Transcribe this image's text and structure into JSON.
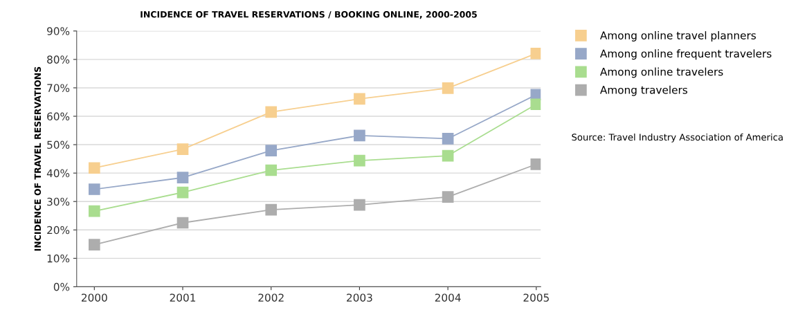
{
  "chart_data": {
    "type": "line",
    "title": "INCIDENCE OF TRAVEL RESERVATIONS / BOOKING ONLINE, 2000-2005",
    "ylabel": "INCIDENCE OF TRAVEL RESERVATIONS",
    "categories": [
      "2000",
      "2001",
      "2002",
      "2003",
      "2004",
      "2005"
    ],
    "series": [
      {
        "name": "Among online travel planners",
        "color": "#f7cf8f",
        "values": [
          41.8,
          48.4,
          61.5,
          66.1,
          69.9,
          82.1
        ]
      },
      {
        "name": "Among online frequent travelers",
        "color": "#97a8c8",
        "values": [
          34.3,
          38.4,
          47.9,
          53.2,
          52.1,
          67.6
        ]
      },
      {
        "name": "Among online travelers",
        "color": "#a9dd8f",
        "values": [
          26.6,
          33.2,
          41.0,
          44.4,
          46.1,
          64.2
        ]
      },
      {
        "name": "Among travelers",
        "color": "#adadad",
        "values": [
          14.8,
          22.5,
          27.1,
          28.8,
          31.6,
          43.1
        ]
      }
    ],
    "ylim": [
      0,
      90
    ],
    "yticks": [
      {
        "value": 0,
        "label": "0%"
      },
      {
        "value": 10,
        "label": "10%"
      },
      {
        "value": 20,
        "label": "20%"
      },
      {
        "value": 30,
        "label": "30%"
      },
      {
        "value": 40,
        "label": "40%"
      },
      {
        "value": 50,
        "label": "50%"
      },
      {
        "value": 60,
        "label": "60%"
      },
      {
        "value": 70,
        "label": "70%"
      },
      {
        "value": 80,
        "label": "80%"
      },
      {
        "value": 90,
        "label": "90%"
      }
    ],
    "grid": "y",
    "legend": "top right",
    "marker": "square",
    "line_style": "solid",
    "annotations": [
      "Source: Travel Industry Association of America"
    ]
  }
}
